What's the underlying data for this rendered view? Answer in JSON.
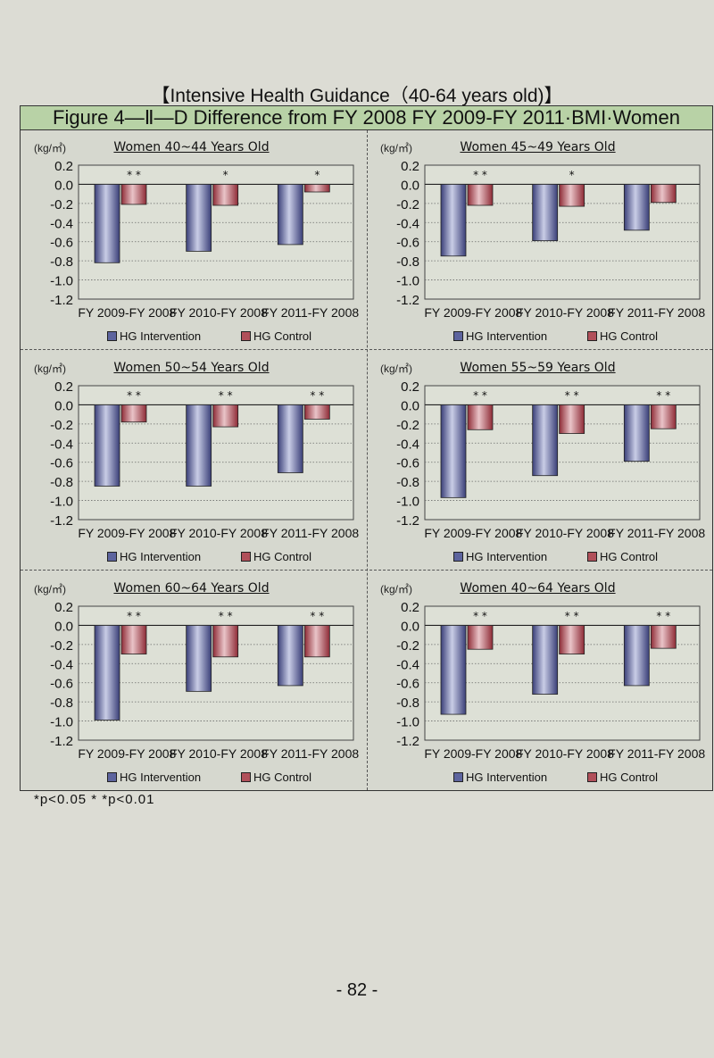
{
  "page_title": "【Intensive Health Guidance（40-64 years old)】",
  "figure_title": "Figure 4—Ⅱ—D  Difference from FY 2008 FY 2009-FY 2011·BMI·Women",
  "footnote": "*p<0.05   * *p<0.01",
  "page_number": "- 82 -",
  "colors": {
    "intervention": "#5d649e",
    "control": "#b1505a",
    "frame_band": "#b8d2a6"
  },
  "chart_data": [
    {
      "type": "bar",
      "title": "Women 40~44 Years Old",
      "ylabel": "(kg/㎡)",
      "categories": [
        "FY 2009-FY 2008",
        "FY 2010-FY 2008",
        "FY 2011-FY 2008"
      ],
      "ylim": [
        -1.2,
        0.2
      ],
      "yticks": [
        "0.2",
        "0.0",
        "-0.2",
        "-0.4",
        "-0.6",
        "-0.8",
        "-1.0",
        "-1.2"
      ],
      "significance": [
        "* *",
        "*",
        "*"
      ],
      "series": [
        {
          "name": "HG Intervention",
          "values": [
            -0.82,
            -0.7,
            -0.63
          ]
        },
        {
          "name": "HG Control",
          "values": [
            -0.21,
            -0.22,
            -0.08
          ]
        }
      ]
    },
    {
      "type": "bar",
      "title": "Women 45~49 Years Old",
      "ylabel": "(kg/㎡)",
      "categories": [
        "FY 2009-FY 2008",
        "FY 2010-FY 2008",
        "FY 2011-FY 2008"
      ],
      "ylim": [
        -1.2,
        0.2
      ],
      "yticks": [
        "0.2",
        "0.0",
        "-0.2",
        "-0.4",
        "-0.6",
        "-0.8",
        "-1.0",
        "-1.2"
      ],
      "significance": [
        "* *",
        "*",
        ""
      ],
      "series": [
        {
          "name": "HG Intervention",
          "values": [
            -0.75,
            -0.59,
            -0.48
          ]
        },
        {
          "name": "HG Control",
          "values": [
            -0.22,
            -0.23,
            -0.19
          ]
        }
      ]
    },
    {
      "type": "bar",
      "title": "Women 50~54 Years Old",
      "ylabel": "(kg/㎡)",
      "categories": [
        "FY 2009-FY 2008",
        "FY 2010-FY 2008",
        "FY 2011-FY 2008"
      ],
      "ylim": [
        -1.2,
        0.2
      ],
      "yticks": [
        "0.2",
        "0.0",
        "-0.2",
        "-0.4",
        "-0.6",
        "-0.8",
        "-1.0",
        "-1.2"
      ],
      "significance": [
        "* *",
        "* *",
        "* *"
      ],
      "series": [
        {
          "name": "HG Intervention",
          "values": [
            -0.85,
            -0.85,
            -0.71
          ]
        },
        {
          "name": "HG Control",
          "values": [
            -0.18,
            -0.23,
            -0.15
          ]
        }
      ]
    },
    {
      "type": "bar",
      "title": "Women 55~59 Years Old",
      "ylabel": "(kg/㎡)",
      "categories": [
        "FY 2009-FY 2008",
        "FY 2010-FY 2008",
        "FY 2011-FY 2008"
      ],
      "ylim": [
        -1.2,
        0.2
      ],
      "yticks": [
        "0.2",
        "0.0",
        "-0.2",
        "-0.4",
        "-0.6",
        "-0.8",
        "-1.0",
        "-1.2"
      ],
      "significance": [
        "* *",
        "* *",
        "* *"
      ],
      "series": [
        {
          "name": "HG Intervention",
          "values": [
            -0.97,
            -0.74,
            -0.59
          ]
        },
        {
          "name": "HG Control",
          "values": [
            -0.26,
            -0.3,
            -0.25
          ]
        }
      ]
    },
    {
      "type": "bar",
      "title": "Women 60~64 Years Old",
      "ylabel": "(kg/㎡)",
      "categories": [
        "FY 2009-FY 2008",
        "FY 2010-FY 2008",
        "FY 2011-FY 2008"
      ],
      "ylim": [
        -1.2,
        0.2
      ],
      "yticks": [
        "0.2",
        "0.0",
        "-0.2",
        "-0.4",
        "-0.6",
        "-0.8",
        "-1.0",
        "-1.2"
      ],
      "significance": [
        "* *",
        "* *",
        "* *"
      ],
      "series": [
        {
          "name": "HG Intervention",
          "values": [
            -0.99,
            -0.69,
            -0.63
          ]
        },
        {
          "name": "HG Control",
          "values": [
            -0.3,
            -0.33,
            -0.33
          ]
        }
      ]
    },
    {
      "type": "bar",
      "title": "Women 40~64 Years Old",
      "ylabel": "(kg/㎡)",
      "categories": [
        "FY 2009-FY 2008",
        "FY 2010-FY 2008",
        "FY 2011-FY 2008"
      ],
      "ylim": [
        -1.2,
        0.2
      ],
      "yticks": [
        "0.2",
        "0.0",
        "-0.2",
        "-0.4",
        "-0.6",
        "-0.8",
        "-1.0",
        "-1.2"
      ],
      "significance": [
        "* *",
        "* *",
        "* *"
      ],
      "series": [
        {
          "name": "HG Intervention",
          "values": [
            -0.93,
            -0.72,
            -0.63
          ]
        },
        {
          "name": "HG Control",
          "values": [
            -0.25,
            -0.3,
            -0.24
          ]
        }
      ]
    }
  ]
}
